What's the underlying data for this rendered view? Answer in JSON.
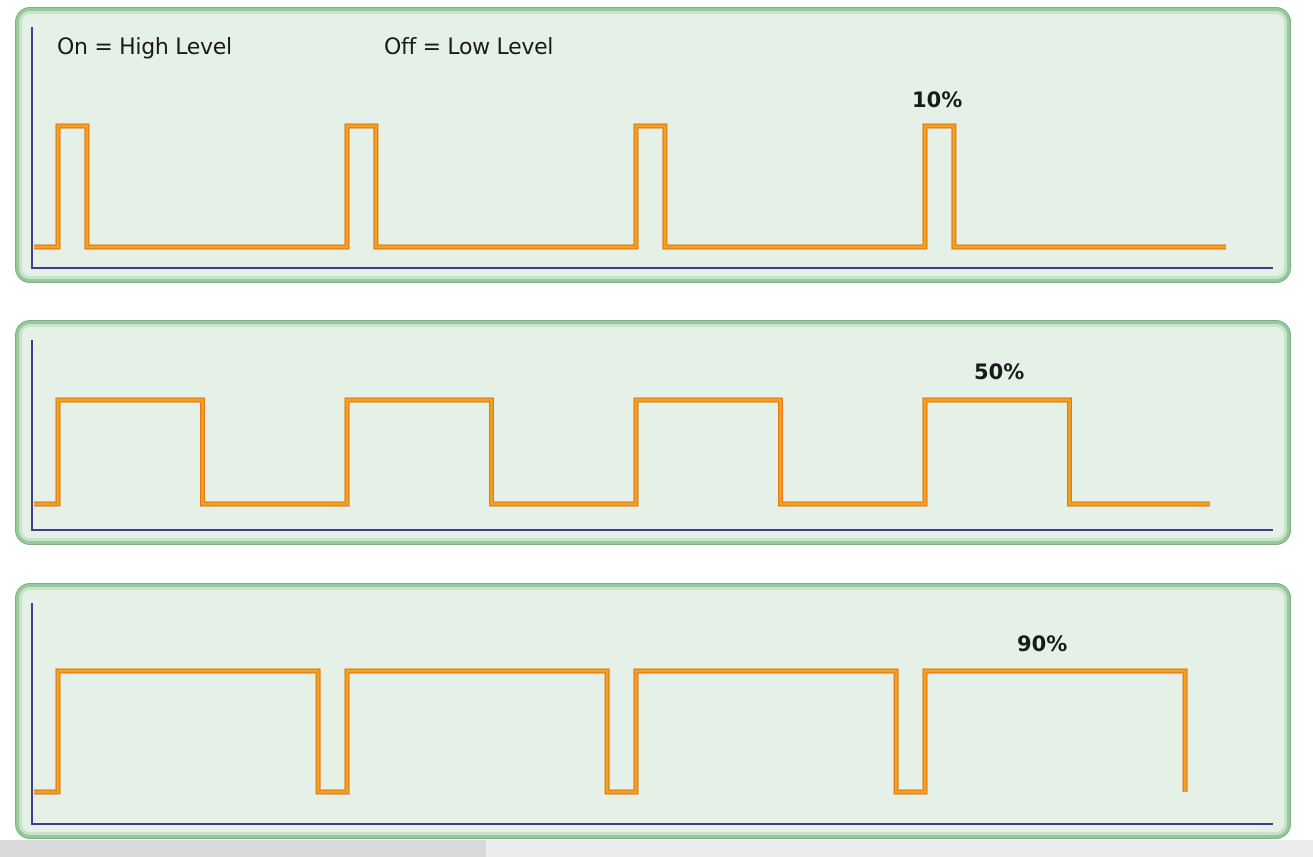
{
  "legend": {
    "on_label": "On = High Level",
    "off_label": "Off = Low Level"
  },
  "signals": [
    {
      "duty_label": "10%",
      "duty": 0.1,
      "pulses": 4
    },
    {
      "duty_label": "50%",
      "duty": 0.5,
      "pulses": 4
    },
    {
      "duty_label": "90%",
      "duty": 0.9,
      "pulses": 4
    }
  ],
  "colors": {
    "wave": "#f2a51c",
    "wave_shadow": "#e4781a",
    "axis": "#3d3f8c",
    "panel_fill": "#e5f1e7",
    "panel_border": "#96c99a"
  }
}
